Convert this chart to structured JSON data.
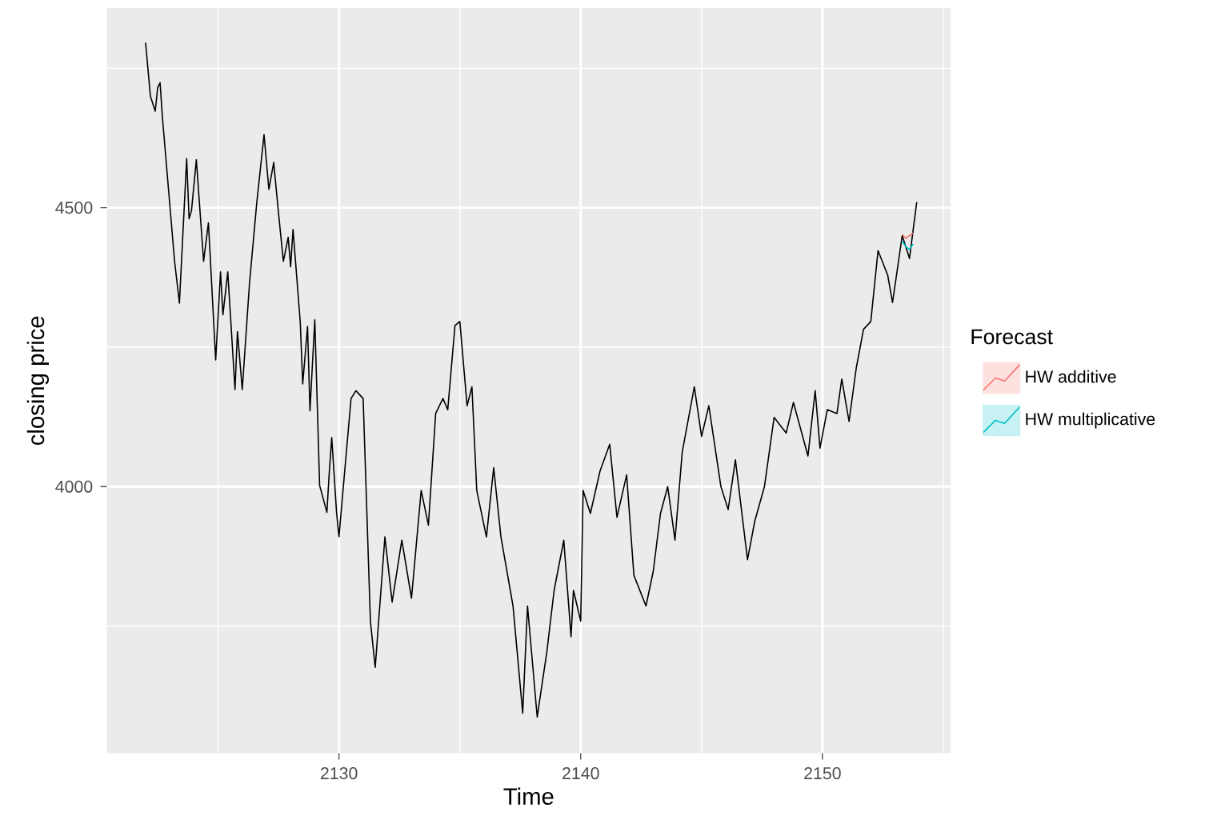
{
  "chart_data": {
    "type": "line",
    "xlabel": "Time",
    "ylabel": "closing price",
    "legend_title": "Forecast",
    "xlim": [
      2120.4,
      2155.3
    ],
    "ylim": [
      3522,
      4858
    ],
    "xticks": [
      2130,
      2140,
      2150
    ],
    "yticks": [
      4000,
      4500
    ],
    "grid": true,
    "legend": "right",
    "series": [
      {
        "color": "#000000",
        "x": [
          2122.0,
          2122.2,
          2122.4,
          2122.5,
          2122.6,
          2122.7,
          2123.2,
          2123.4,
          2123.7,
          2123.8,
          2123.9,
          2124.1,
          2124.4,
          2124.6,
          2124.9,
          2125.1,
          2125.2,
          2125.4,
          2125.7,
          2125.8,
          2126.0,
          2126.3,
          2126.5,
          2126.6,
          2126.9,
          2127.1,
          2127.3,
          2127.5,
          2127.7,
          2127.9,
          2128.0,
          2128.1,
          2128.4,
          2128.5,
          2128.7,
          2128.8,
          2129.0,
          2129.2,
          2129.5,
          2129.6,
          2129.7,
          2129.9,
          2130.0,
          2130.5,
          2130.7,
          2131.0,
          2131.3,
          2131.5,
          2131.9,
          2132.2,
          2132.6,
          2133.0,
          2133.4,
          2133.7,
          2134.0,
          2134.3,
          2134.5,
          2134.8,
          2135.0,
          2135.3,
          2135.5,
          2135.7,
          2136.1,
          2136.4,
          2136.7,
          2137.2,
          2137.6,
          2137.8,
          2138.2,
          2138.6,
          2138.9,
          2139.3,
          2139.6,
          2139.7,
          2140.0,
          2140.1,
          2140.4,
          2140.8,
          2141.2,
          2141.5,
          2141.9,
          2142.2,
          2142.7,
          2143.0,
          2143.3,
          2143.6,
          2143.9,
          2144.2,
          2144.7,
          2145.0,
          2145.3,
          2145.8,
          2146.1,
          2146.4,
          2146.9,
          2147.2,
          2147.6,
          2148.0,
          2148.5,
          2148.8,
          2149.4,
          2149.7,
          2149.9,
          2150.2,
          2150.6,
          2150.8,
          2151.1,
          2151.4,
          2151.7,
          2152.0,
          2152.3,
          2152.7,
          2152.9,
          2153.3,
          2153.6,
          2153.9
        ],
        "values": [
          4796,
          4700,
          4673,
          4715,
          4724,
          4660,
          4404,
          4329,
          4588,
          4480,
          4495,
          4586,
          4404,
          4473,
          4227,
          4385,
          4308,
          4385,
          4174,
          4278,
          4174,
          4365,
          4461,
          4509,
          4631,
          4533,
          4581,
          4490,
          4404,
          4447,
          4394,
          4461,
          4294,
          4184,
          4287,
          4136,
          4299,
          4002,
          3954,
          4026,
          4088,
          3954,
          3910,
          4158,
          4172,
          4158,
          3759,
          3676,
          3910,
          3793,
          3904,
          3800,
          3993,
          3931,
          4131,
          4158,
          4138,
          4289,
          4296,
          4145,
          4179,
          3993,
          3910,
          4034,
          3910,
          3786,
          3594,
          3786,
          3587,
          3704,
          3814,
          3904,
          3731,
          3814,
          3759,
          3993,
          3952,
          4028,
          4076,
          3945,
          4021,
          3841,
          3786,
          3848,
          3952,
          4000,
          3904,
          4062,
          4179,
          4090,
          4145,
          4000,
          3959,
          4048,
          3869,
          3938,
          4000,
          4124,
          4096,
          4151,
          4055,
          4172,
          4069,
          4138,
          4131,
          4193,
          4117,
          4213,
          4282,
          4296,
          4423,
          4379,
          4330,
          4450,
          4409,
          4510
        ]
      },
      {
        "name": "HW additive",
        "color": "#F8766D",
        "x": [
          2153.3,
          2153.45,
          2153.6,
          2153.75
        ],
        "values": [
          4452,
          4445,
          4450,
          4455
        ]
      },
      {
        "name": "HW multiplicative",
        "color": "#00BFC4",
        "x": [
          2153.3,
          2153.45,
          2153.6,
          2153.75
        ],
        "values": [
          4440,
          4430,
          4425,
          4435
        ]
      }
    ]
  }
}
